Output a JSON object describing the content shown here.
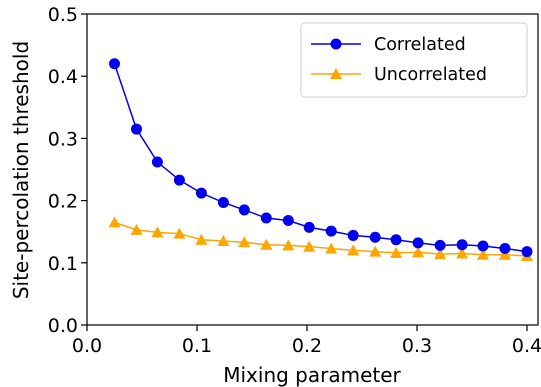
{
  "chart_data": {
    "type": "line",
    "xlabel": "Mixing parameter",
    "ylabel": "Site-percolation threshold",
    "xlim": [
      0.0,
      0.41
    ],
    "ylim": [
      0.0,
      0.5
    ],
    "xticks": [
      "0.0",
      "0.1",
      "0.2",
      "0.3",
      "0.4"
    ],
    "xtick_values": [
      0.0,
      0.1,
      0.2,
      0.3,
      0.4
    ],
    "yticks": [
      "0.0",
      "0.1",
      "0.2",
      "0.3",
      "0.4",
      "0.5"
    ],
    "ytick_values": [
      0.0,
      0.1,
      0.2,
      0.3,
      0.4,
      0.5
    ],
    "grid": false,
    "legend_position": "top-right",
    "x": [
      0.025,
      0.045,
      0.064,
      0.084,
      0.104,
      0.124,
      0.143,
      0.163,
      0.183,
      0.202,
      0.222,
      0.242,
      0.262,
      0.281,
      0.301,
      0.321,
      0.341,
      0.36,
      0.38,
      0.4
    ],
    "series": [
      {
        "name": "Correlated",
        "color": "#0000ee",
        "marker": "circle",
        "values": [
          0.42,
          0.315,
          0.262,
          0.233,
          0.212,
          0.197,
          0.185,
          0.172,
          0.168,
          0.157,
          0.151,
          0.144,
          0.141,
          0.137,
          0.132,
          0.128,
          0.129,
          0.127,
          0.123,
          0.118
        ]
      },
      {
        "name": "Uncorrelated",
        "color": "#ffa500",
        "marker": "triangle",
        "values": [
          0.165,
          0.153,
          0.149,
          0.147,
          0.137,
          0.135,
          0.133,
          0.129,
          0.128,
          0.126,
          0.123,
          0.12,
          0.118,
          0.116,
          0.117,
          0.114,
          0.115,
          0.113,
          0.113,
          0.111
        ]
      }
    ]
  }
}
